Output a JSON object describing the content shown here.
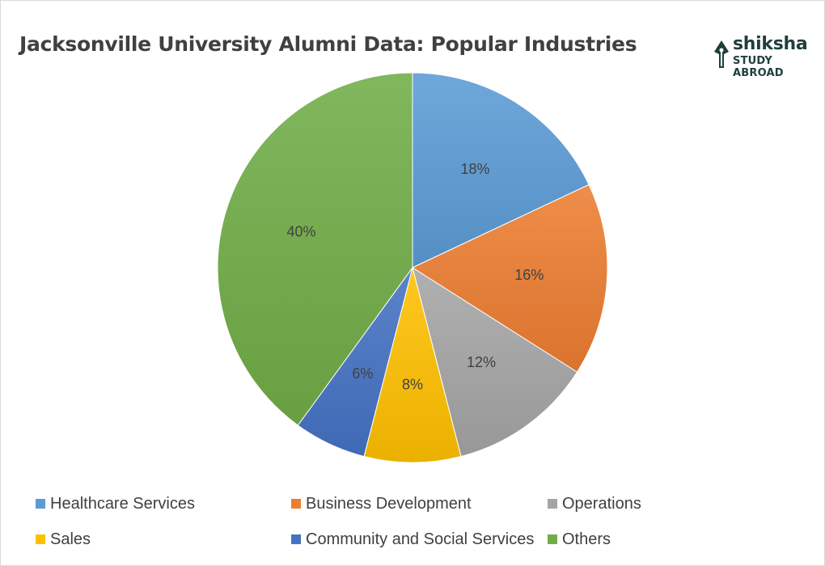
{
  "chart_data": {
    "type": "pie",
    "title": "Jacksonville University Alumni Data: Popular Industries",
    "categories": [
      "Healthcare Services",
      "Business Development",
      "Operations",
      "Sales",
      "Community and Social Services",
      "Others"
    ],
    "values": [
      18,
      16,
      12,
      8,
      6,
      40
    ],
    "labels": [
      "18%",
      "16%",
      "12%",
      "8%",
      "6%",
      "40%"
    ],
    "colors": [
      "#5b9bd5",
      "#ed7d31",
      "#a5a5a5",
      "#ffc000",
      "#4472c4",
      "#70ad47"
    ],
    "legend_position": "bottom"
  },
  "logo": {
    "brand": "shiksha",
    "tagline": "STUDY ABROAD",
    "icon": "pen-nib-icon"
  }
}
